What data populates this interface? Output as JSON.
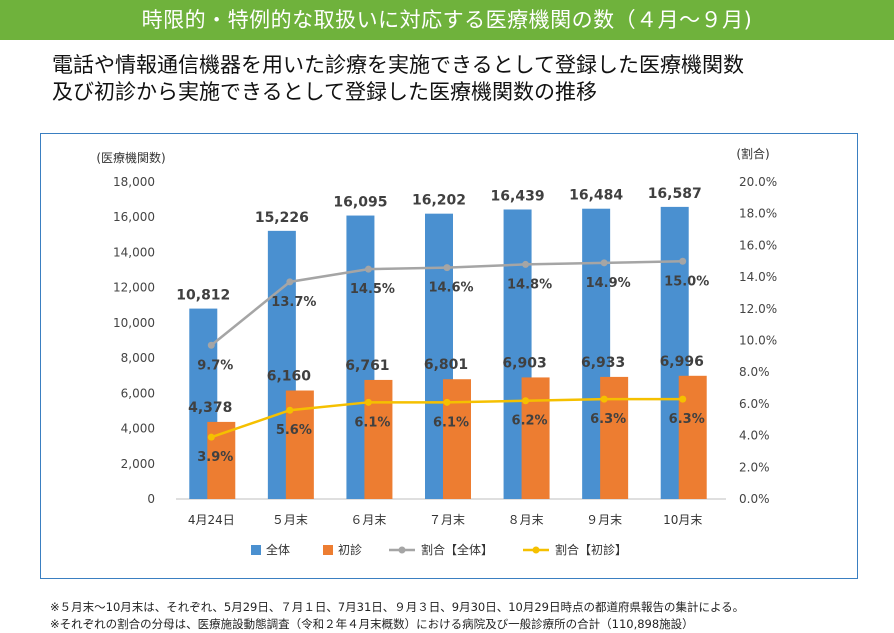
{
  "header": {
    "banner_title": "時限的・特例的な取扱いに対応する医療機関の数（４月～９月)",
    "subtitle_line1": "電話や情報通信機器を用いた診療を実施できるとして登録した医療機関数",
    "subtitle_line2": "及び初診から実施できるとして登録した医療機関数の推移"
  },
  "chart_data": {
    "type": "bar",
    "ylabel_left": "(医療機関数)",
    "ylabel_right": "(割合)",
    "categories": [
      "4月24日",
      "５月末",
      "６月末",
      "７月末",
      "８月末",
      "９月末",
      "10月末"
    ],
    "ylim_left": [
      0,
      18000
    ],
    "ylim_right": [
      0,
      20
    ],
    "left_ticks": [
      "0",
      "2,000",
      "4,000",
      "6,000",
      "8,000",
      "10,000",
      "12,000",
      "14,000",
      "16,000",
      "18,000"
    ],
    "right_ticks": [
      "0.0%",
      "2.0%",
      "4.0%",
      "6.0%",
      "8.0%",
      "10.0%",
      "12.0%",
      "14.0%",
      "16.0%",
      "18.0%",
      "20.0%"
    ],
    "bar_series": [
      {
        "name": "全体",
        "color": "#4a90d0",
        "values": [
          10812,
          15226,
          16095,
          16202,
          16439,
          16484,
          16587
        ],
        "labels": [
          "10,812",
          "15,226",
          "16,095",
          "16,202",
          "16,439",
          "16,484",
          "16,587"
        ]
      },
      {
        "name": "初診",
        "color": "#ed7d31",
        "values": [
          4378,
          6160,
          6761,
          6801,
          6903,
          6933,
          6996
        ],
        "labels": [
          "4,378",
          "6,160",
          "6,761",
          "6,801",
          "6,903",
          "6,933",
          "6,996"
        ]
      }
    ],
    "line_series": [
      {
        "name": "割合【全体】",
        "color": "#a5a5a5",
        "values": [
          9.7,
          13.7,
          14.5,
          14.6,
          14.8,
          14.9,
          15.0
        ],
        "labels": [
          "9.7%",
          "13.7%",
          "14.5%",
          "14.6%",
          "14.8%",
          "14.9%",
          "15.0%"
        ]
      },
      {
        "name": "割合【初診】",
        "color": "#f5c000",
        "values": [
          3.9,
          5.6,
          6.1,
          6.1,
          6.2,
          6.3,
          6.3
        ],
        "labels": [
          "3.9%",
          "5.6%",
          "6.1%",
          "6.1%",
          "6.2%",
          "6.3%",
          "6.3%"
        ]
      }
    ],
    "legend_position": "bottom"
  },
  "footnotes": {
    "note1": "※５月末～10月末は、それぞれ、5月29日、７月１日、7月31日、９月３日、9月30日、10月29日時点の都道府県報告の集計による。",
    "note2": "※それぞれの割合の分母は、医療施設動態調査（令和２年４月末概数）における病院及び一般診療所の合計（110,898施設）"
  }
}
